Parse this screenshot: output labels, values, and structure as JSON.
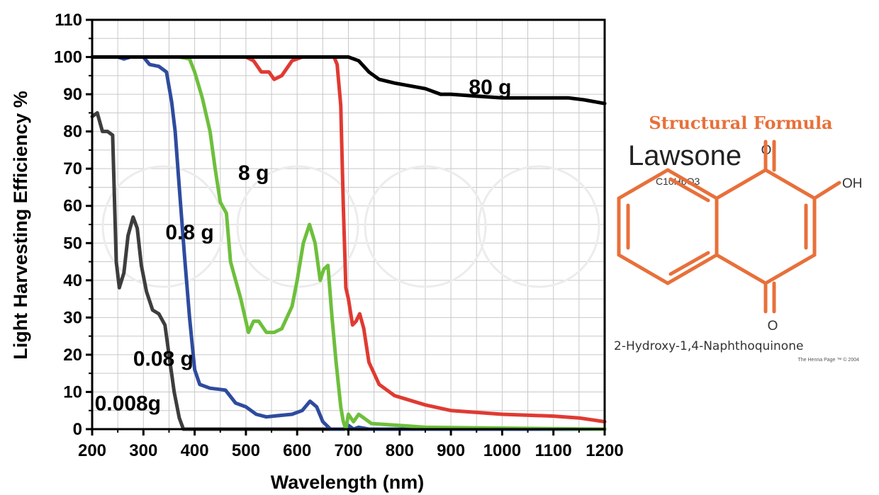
{
  "chart_data": {
    "type": "line",
    "title": "",
    "xlabel": "Wavelength (nm)",
    "ylabel": "Light Harvesting Efficiency %",
    "xlim": [
      200,
      1200
    ],
    "ylim": [
      0,
      110
    ],
    "xticks": [
      200,
      300,
      400,
      500,
      600,
      700,
      800,
      900,
      1000,
      1100,
      1200
    ],
    "yticks": [
      0,
      10,
      20,
      30,
      40,
      50,
      60,
      70,
      80,
      90,
      100,
      110
    ],
    "grid": true,
    "series": [
      {
        "name": "0.008g",
        "color": "#3d3d3d",
        "label_at": [
          205,
          5
        ],
        "points": [
          [
            200,
            84
          ],
          [
            210,
            85
          ],
          [
            220,
            80
          ],
          [
            230,
            80
          ],
          [
            240,
            79
          ],
          [
            247,
            45
          ],
          [
            253,
            38
          ],
          [
            262,
            42
          ],
          [
            270,
            52
          ],
          [
            280,
            57
          ],
          [
            288,
            54
          ],
          [
            296,
            44
          ],
          [
            306,
            37
          ],
          [
            318,
            32
          ],
          [
            330,
            31
          ],
          [
            342,
            28
          ],
          [
            350,
            20
          ],
          [
            360,
            10
          ],
          [
            370,
            3
          ],
          [
            378,
            0
          ],
          [
            1200,
            0
          ]
        ]
      },
      {
        "name": "0.08 g",
        "color": "#2e4b9e",
        "label_at": [
          280,
          17
        ],
        "points": [
          [
            200,
            100
          ],
          [
            250,
            100
          ],
          [
            262,
            99.5
          ],
          [
            275,
            100
          ],
          [
            300,
            100
          ],
          [
            312,
            98
          ],
          [
            330,
            97.5
          ],
          [
            345,
            96
          ],
          [
            355,
            88
          ],
          [
            362,
            80
          ],
          [
            370,
            65
          ],
          [
            380,
            47
          ],
          [
            390,
            30
          ],
          [
            400,
            16
          ],
          [
            410,
            12
          ],
          [
            430,
            11
          ],
          [
            460,
            10.5
          ],
          [
            480,
            7
          ],
          [
            500,
            6
          ],
          [
            520,
            4
          ],
          [
            540,
            3.3
          ],
          [
            560,
            3.6
          ],
          [
            590,
            4
          ],
          [
            610,
            5
          ],
          [
            625,
            7.5
          ],
          [
            638,
            6
          ],
          [
            650,
            2
          ],
          [
            665,
            0
          ],
          [
            690,
            0
          ],
          [
            700,
            1
          ],
          [
            710,
            0
          ],
          [
            720,
            0.5
          ],
          [
            740,
            0
          ],
          [
            1200,
            0
          ]
        ]
      },
      {
        "name": "0.8 g",
        "color": "#6ebf3c",
        "label_at": [
          343,
          51
        ],
        "points": [
          [
            200,
            100
          ],
          [
            370,
            100
          ],
          [
            390,
            99.5
          ],
          [
            400,
            96
          ],
          [
            415,
            89
          ],
          [
            430,
            80
          ],
          [
            440,
            70
          ],
          [
            450,
            61
          ],
          [
            462,
            58
          ],
          [
            470,
            45
          ],
          [
            480,
            40
          ],
          [
            490,
            35
          ],
          [
            505,
            26
          ],
          [
            515,
            29
          ],
          [
            525,
            29
          ],
          [
            540,
            26
          ],
          [
            555,
            26
          ],
          [
            570,
            27
          ],
          [
            590,
            33
          ],
          [
            600,
            40
          ],
          [
            612,
            50
          ],
          [
            624,
            55
          ],
          [
            635,
            50
          ],
          [
            645,
            40
          ],
          [
            652,
            43
          ],
          [
            660,
            44
          ],
          [
            668,
            30
          ],
          [
            676,
            18
          ],
          [
            685,
            6
          ],
          [
            690,
            2
          ],
          [
            695,
            0
          ],
          [
            700,
            4
          ],
          [
            710,
            2
          ],
          [
            720,
            4
          ],
          [
            730,
            3
          ],
          [
            745,
            1.5
          ],
          [
            800,
            1
          ],
          [
            850,
            0.5
          ],
          [
            1200,
            0
          ]
        ]
      },
      {
        "name": "8 g",
        "color": "#e03a32",
        "label_at": [
          485,
          67
        ],
        "points": [
          [
            200,
            100
          ],
          [
            500,
            100
          ],
          [
            515,
            99
          ],
          [
            530,
            96
          ],
          [
            545,
            96
          ],
          [
            555,
            94
          ],
          [
            570,
            95
          ],
          [
            590,
            99
          ],
          [
            610,
            100
          ],
          [
            650,
            100
          ],
          [
            672,
            100
          ],
          [
            678,
            98
          ],
          [
            685,
            87
          ],
          [
            690,
            60
          ],
          [
            695,
            38
          ],
          [
            700,
            35
          ],
          [
            708,
            28
          ],
          [
            715,
            29
          ],
          [
            722,
            31
          ],
          [
            730,
            27
          ],
          [
            740,
            18
          ],
          [
            760,
            12
          ],
          [
            790,
            9
          ],
          [
            850,
            6.5
          ],
          [
            900,
            5
          ],
          [
            1000,
            4
          ],
          [
            1100,
            3.5
          ],
          [
            1150,
            3
          ],
          [
            1200,
            2
          ]
        ]
      },
      {
        "name": "80 g",
        "color": "#000000",
        "label_at": [
          935,
          90
        ],
        "points": [
          [
            200,
            100
          ],
          [
            700,
            100
          ],
          [
            720,
            99
          ],
          [
            740,
            96
          ],
          [
            760,
            94
          ],
          [
            790,
            93
          ],
          [
            850,
            91.5
          ],
          [
            880,
            90
          ],
          [
            900,
            90
          ],
          [
            950,
            89.5
          ],
          [
            1000,
            89
          ],
          [
            1050,
            89
          ],
          [
            1100,
            89
          ],
          [
            1130,
            89
          ],
          [
            1160,
            88.5
          ],
          [
            1200,
            87.5
          ]
        ]
      }
    ]
  },
  "structure": {
    "title": "Structural Formula",
    "compound": "Lawsone",
    "formula": "C10H6O3",
    "iupac": "2-Hydroxy-1,4-Naphthoquinone",
    "atoms": {
      "top_o": "O",
      "bottom_o": "O",
      "hydroxyl": "OH"
    },
    "credit": "The Henna Page ™ © 2004",
    "title_color": "#e8703a",
    "bond_color": "#e8703a"
  }
}
